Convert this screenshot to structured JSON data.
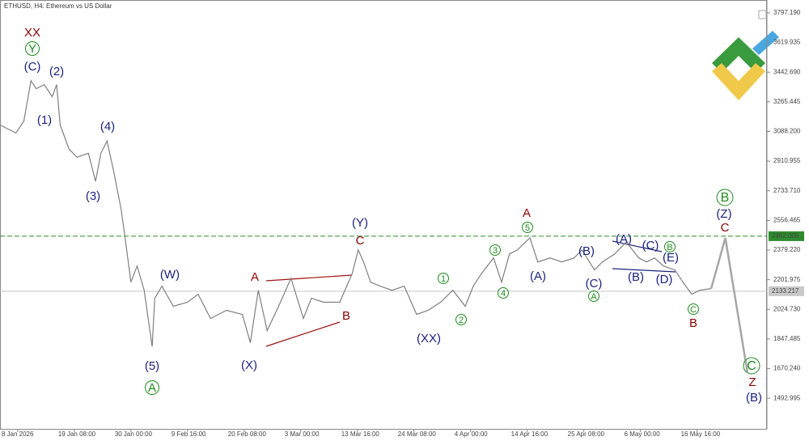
{
  "chart_data": {
    "type": "line",
    "title": "ETHUSD, H4:  Ethereum vs US Dollar",
    "xlim": [
      -20,
      847
    ],
    "ylim": [
      1310,
      3874.3
    ],
    "xticks": [
      {
        "value": 0,
        "label": "8 Jan 2026"
      },
      {
        "value": 64,
        "label": "19 Jan 08:00"
      },
      {
        "value": 128,
        "label": "30 Jan 00:00"
      },
      {
        "value": 192,
        "label": "9 Feb 16:00"
      },
      {
        "value": 256,
        "label": "20 Feb 08:00"
      },
      {
        "value": 320,
        "label": "3 Mar 00:00"
      },
      {
        "value": 384,
        "label": "13 Mar 16:00"
      },
      {
        "value": 448,
        "label": "24 Mar 08:00"
      },
      {
        "value": 512,
        "label": "4 Apr 00:00"
      },
      {
        "value": 576,
        "label": "14 Apr 16:00"
      },
      {
        "value": 640,
        "label": "25 Apr 08:00"
      },
      {
        "value": 704,
        "label": "6 May 00:00"
      },
      {
        "value": 768,
        "label": "16 May 16:00"
      }
    ],
    "yticks": [
      {
        "value": 3797.19,
        "label": "3797.190"
      },
      {
        "value": 3619.935,
        "label": "3619.935"
      },
      {
        "value": 3442.69,
        "label": "3442.690"
      },
      {
        "value": 3265.445,
        "label": "3265.445"
      },
      {
        "value": 3088.2,
        "label": "3088.200"
      },
      {
        "value": 2910.955,
        "label": "2910.955"
      },
      {
        "value": 2733.71,
        "label": "2733.710"
      },
      {
        "value": 2556.465,
        "label": "2556.465"
      },
      {
        "value": 2379.22,
        "label": "2379.220"
      },
      {
        "value": 2201.975,
        "label": "2201.975"
      },
      {
        "value": 2024.73,
        "label": "2024.730"
      },
      {
        "value": 1847.485,
        "label": "1847.485"
      },
      {
        "value": 1670.24,
        "label": "1670.240"
      },
      {
        "value": 1492.995,
        "label": "1492.995"
      }
    ],
    "hlines": [
      {
        "value": 2462.006,
        "color": "#2e8b2e",
        "dashed": true
      },
      {
        "value": 2133.217,
        "color": "#c8c8c8",
        "dashed": false
      }
    ],
    "series": [
      {
        "color": "#7f7f7f",
        "width": 1.2,
        "x": [
          -20,
          -2,
          7,
          15,
          21,
          30,
          39,
          44,
          48,
          58,
          67,
          80,
          88,
          94,
          101,
          108,
          117,
          122,
          128,
          135,
          143,
          152,
          155,
          163,
          176,
          192,
          204,
          218,
          236,
          254,
          263,
          272,
          282,
          295,
          309,
          323,
          332,
          346,
          364,
          378,
          385,
          391,
          399,
          410,
          423,
          437,
          451,
          464,
          478,
          492,
          506,
          515,
          524,
          538,
          547,
          556,
          565,
          579,
          588,
          602,
          615,
          629,
          638,
          652,
          661,
          675,
          688,
          702,
          711,
          720,
          730,
          743,
          752,
          762,
          771,
          784
        ],
        "values": [
          3127,
          3079,
          3151,
          3392,
          3344,
          3368,
          3296,
          3368,
          3127,
          2983,
          2934,
          2958,
          2790,
          2958,
          3031,
          2862,
          2621,
          2428,
          2187,
          2284,
          2139,
          1802,
          2091,
          2163,
          2043,
          2067,
          2115,
          1970,
          2019,
          1994,
          1826,
          2139,
          1898,
          2043,
          2211,
          1970,
          2091,
          2067,
          2067,
          2236,
          2380,
          2308,
          2187,
          2163,
          2139,
          2163,
          1994,
          2019,
          2067,
          2139,
          2043,
          2163,
          2236,
          2332,
          2187,
          2356,
          2380,
          2452,
          2308,
          2332,
          2308,
          2332,
          2380,
          2260,
          2308,
          2356,
          2428,
          2332,
          2308,
          2332,
          2284,
          2260,
          2187,
          2115,
          2139,
          2149
        ]
      },
      {
        "color": "#a6a6a6",
        "width": 2.5,
        "x": [
          784,
          800,
          825
        ],
        "values": [
          2149,
          2452,
          1647
        ]
      }
    ],
    "annotations": [
      "XX",
      "Y",
      "(C)",
      "(2)",
      "(1)",
      "(4)",
      "(3)",
      "(W)",
      "(5)",
      "A",
      "(X)",
      "A",
      "B",
      "C",
      "(Y)",
      "(XX)",
      "1",
      "2",
      "3",
      "4",
      "5",
      "A",
      "(A)",
      "(B)",
      "(C)",
      "A",
      "(A)",
      "(C)",
      "B",
      "(E)",
      "(B)",
      "(D)",
      "C",
      "B",
      "B",
      "(Z)",
      "C",
      "C",
      "Z",
      "(B)"
    ]
  }
}
